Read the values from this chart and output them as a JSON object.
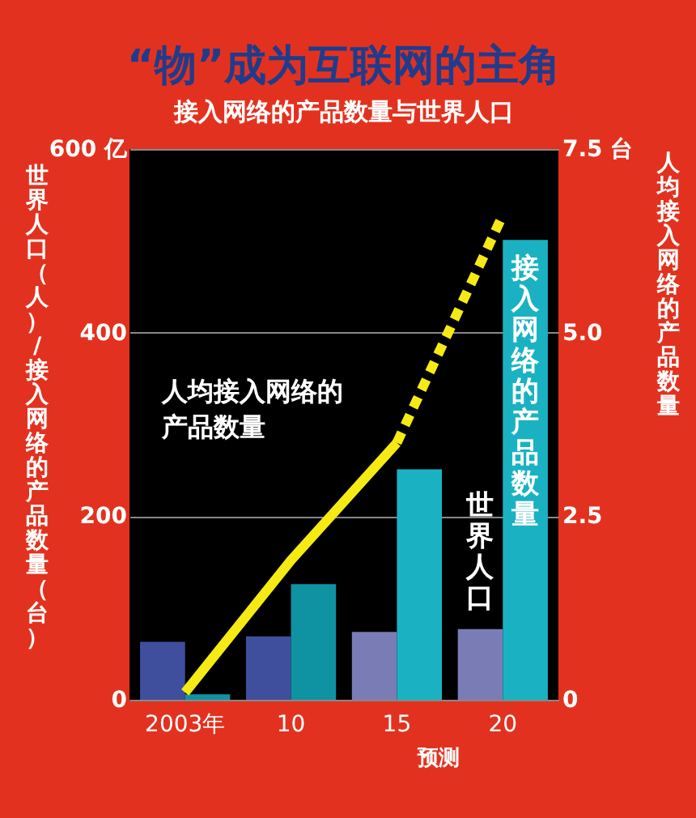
{
  "chart_data": {
    "type": "bar",
    "title": "“物”成为互联网的主角",
    "subtitle": "接入网络的产品数量与世界人口",
    "ylabel": "世界人口（人）/接入网络的产品数量（台）",
    "y2label": "人均接入网络的产品数量",
    "categories": [
      "2003年",
      "10",
      "15",
      "20"
    ],
    "series": [
      {
        "name": "世界人口",
        "colors": [
          "#3f4f9e",
          "#3f4f9e",
          "#7a7db5",
          "#7a7db5"
        ],
        "values": [
          63,
          69,
          74,
          77
        ]
      },
      {
        "name": "接入网络的产品数量",
        "colors": [
          "#0f93a3",
          "#0f93a3",
          "#1ab2c2",
          "#1ab2c2"
        ],
        "values": [
          6,
          126,
          251,
          501
        ]
      },
      {
        "name": "人均接入网络的产品数量",
        "type": "line",
        "axis": "y2",
        "color": "#f5ea14",
        "line_style": "solid",
        "values": [
          0.1,
          1.9,
          3.5,
          null
        ]
      },
      {
        "type": "line",
        "axis": "y2",
        "color": "#f5ea14",
        "line_style": "dashed",
        "values": [
          null,
          null,
          3.5,
          6.6
        ]
      }
    ],
    "ylim": [
      0,
      600
    ],
    "yticks": [
      0,
      200,
      400,
      {
        "value": 600,
        "label": "600 亿"
      }
    ],
    "y2lim": [
      0,
      7.5
    ],
    "y2ticks": [
      0,
      2.5,
      {
        "value": 5,
        "label": "5.0"
      },
      {
        "value": 7.5,
        "label": "7.5 台"
      }
    ],
    "grid": "y",
    "annotations": [
      "预测"
    ]
  }
}
